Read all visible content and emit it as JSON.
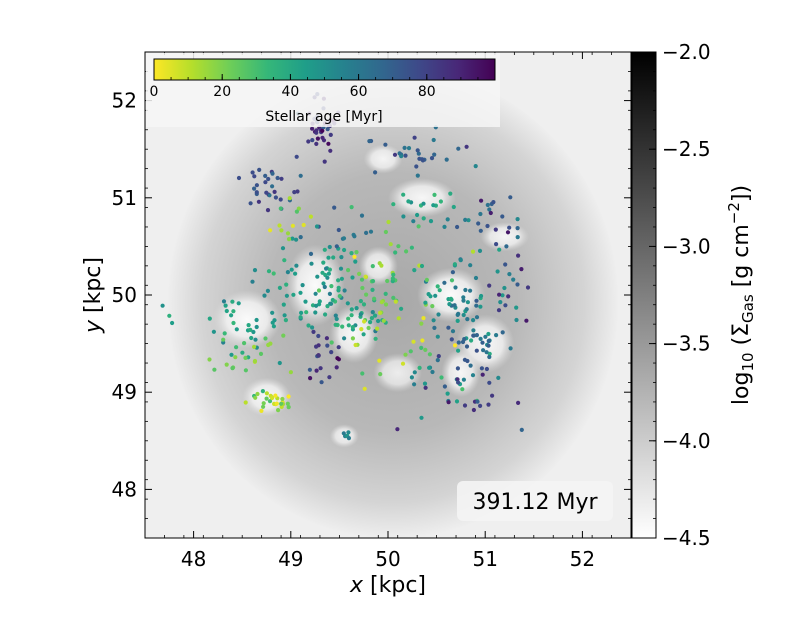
{
  "chart_data": {
    "type": "scatter",
    "title": "",
    "time_label": "391.12 Myr",
    "x_axis": {
      "label_var": "x",
      "label_unit": " [kpc]",
      "lim": [
        47.5,
        52.5
      ],
      "ticks": [
        48,
        49,
        50,
        51,
        52
      ],
      "tick_labels": [
        "48",
        "49",
        "50",
        "51",
        "52"
      ]
    },
    "y_axis": {
      "label_var": "y",
      "label_unit": " [kpc]",
      "lim": [
        47.5,
        52.5
      ],
      "ticks": [
        48,
        49,
        50,
        51,
        52
      ],
      "tick_labels": [
        "48",
        "49",
        "50",
        "51",
        "52"
      ]
    },
    "gas_colorbar": {
      "label_prefix": "log",
      "label_sub": "10",
      "label_mid": " (Σ",
      "label_sub2": "Gas",
      "label_unit": " [g cm",
      "label_exp": "−2",
      "label_end": "])",
      "lim": [
        -4.5,
        -2.0
      ],
      "ticks": [
        -4.5,
        -4.0,
        -3.5,
        -3.0,
        -2.5,
        -2.0
      ],
      "tick_labels": [
        "−4.5",
        "−4.0",
        "−3.5",
        "−3.0",
        "−2.5",
        "−2.0"
      ],
      "colormap": "gray_r"
    },
    "age_colorbar": {
      "label": "Stellar age [Myr]",
      "lim": [
        0,
        100
      ],
      "ticks": [
        0,
        20,
        40,
        60,
        80
      ],
      "tick_labels": [
        "0",
        "20",
        "40",
        "60",
        "80"
      ],
      "colormap": "viridis_r"
    },
    "gas_clumps": [
      {
        "x": 49.25,
        "y": 50.1,
        "rx": 0.3,
        "ry": 0.42,
        "v": -2.15
      },
      {
        "x": 49.65,
        "y": 49.6,
        "rx": 0.25,
        "ry": 0.3,
        "v": -2.2
      },
      {
        "x": 48.55,
        "y": 49.75,
        "rx": 0.35,
        "ry": 0.3,
        "v": -2.2
      },
      {
        "x": 48.75,
        "y": 48.95,
        "rx": 0.25,
        "ry": 0.2,
        "v": -2.3
      },
      {
        "x": 50.65,
        "y": 50.0,
        "rx": 0.35,
        "ry": 0.28,
        "v": -2.15
      },
      {
        "x": 51.0,
        "y": 49.5,
        "rx": 0.3,
        "ry": 0.3,
        "v": -2.25
      },
      {
        "x": 50.75,
        "y": 49.2,
        "rx": 0.2,
        "ry": 0.25,
        "v": -2.3
      },
      {
        "x": 51.2,
        "y": 50.6,
        "rx": 0.25,
        "ry": 0.15,
        "v": -2.35
      },
      {
        "x": 50.35,
        "y": 51.0,
        "rx": 0.35,
        "ry": 0.2,
        "v": -2.3
      },
      {
        "x": 49.95,
        "y": 51.4,
        "rx": 0.2,
        "ry": 0.15,
        "v": -2.4
      },
      {
        "x": 49.9,
        "y": 50.3,
        "rx": 0.2,
        "ry": 0.2,
        "v": -2.4
      },
      {
        "x": 49.55,
        "y": 48.55,
        "rx": 0.15,
        "ry": 0.12,
        "v": -2.5
      },
      {
        "x": 50.1,
        "y": 49.2,
        "rx": 0.25,
        "ry": 0.2,
        "v": -2.6
      }
    ],
    "star_groups": [
      {
        "name": "",
        "cx": 49.3,
        "cy": 51.75,
        "sx": 0.12,
        "sy": 0.15,
        "n": 40,
        "age": 85
      },
      {
        "name": "",
        "cx": 48.8,
        "cy": 51.15,
        "sx": 0.12,
        "sy": 0.15,
        "n": 30,
        "age": 75
      },
      {
        "name": "",
        "cx": 50.35,
        "cy": 51.45,
        "sx": 0.25,
        "sy": 0.1,
        "n": 28,
        "age": 70
      },
      {
        "name": "",
        "cx": 50.4,
        "cy": 50.9,
        "sx": 0.25,
        "sy": 0.1,
        "n": 20,
        "age": 40
      },
      {
        "name": "",
        "cx": 51.0,
        "cy": 50.75,
        "sx": 0.25,
        "sy": 0.15,
        "n": 20,
        "age": 65
      },
      {
        "name": "",
        "cx": 49.25,
        "cy": 50.15,
        "sx": 0.2,
        "sy": 0.2,
        "n": 55,
        "age": 45
      },
      {
        "name": "",
        "cx": 49.6,
        "cy": 49.8,
        "sx": 0.25,
        "sy": 0.15,
        "n": 50,
        "age": 40
      },
      {
        "name": "",
        "cx": 49.9,
        "cy": 50.25,
        "sx": 0.2,
        "sy": 0.2,
        "n": 30,
        "age": 20
      },
      {
        "name": "",
        "cx": 48.55,
        "cy": 49.75,
        "sx": 0.25,
        "sy": 0.2,
        "n": 40,
        "age": 45
      },
      {
        "name": "",
        "cx": 48.5,
        "cy": 49.4,
        "sx": 0.2,
        "sy": 0.12,
        "n": 20,
        "age": 20
      },
      {
        "name": "",
        "cx": 48.8,
        "cy": 48.9,
        "sx": 0.12,
        "sy": 0.06,
        "n": 28,
        "age": 15
      },
      {
        "name": "",
        "cx": 49.35,
        "cy": 49.4,
        "sx": 0.12,
        "sy": 0.12,
        "n": 20,
        "age": 85
      },
      {
        "name": "",
        "cx": 50.8,
        "cy": 49.9,
        "sx": 0.25,
        "sy": 0.25,
        "n": 55,
        "age": 55
      },
      {
        "name": "",
        "cx": 50.9,
        "cy": 49.5,
        "sx": 0.2,
        "sy": 0.15,
        "n": 30,
        "age": 65
      },
      {
        "name": "",
        "cx": 50.55,
        "cy": 49.15,
        "sx": 0.25,
        "sy": 0.2,
        "n": 25,
        "age": 45
      },
      {
        "name": "",
        "cx": 51.2,
        "cy": 50.25,
        "sx": 0.2,
        "sy": 0.3,
        "n": 15,
        "age": 88
      },
      {
        "name": "",
        "cx": 50.0,
        "cy": 49.6,
        "sx": 0.3,
        "sy": 0.3,
        "n": 25,
        "age": 10
      },
      {
        "name": "",
        "cx": 50.9,
        "cy": 48.9,
        "sx": 0.3,
        "sy": 0.25,
        "n": 18,
        "age": 80
      },
      {
        "name": "",
        "cx": 49.6,
        "cy": 50.65,
        "sx": 0.3,
        "sy": 0.15,
        "n": 15,
        "age": 60
      },
      {
        "name": "",
        "cx": 50.5,
        "cy": 50.25,
        "sx": 0.25,
        "sy": 0.2,
        "n": 15,
        "age": 30
      },
      {
        "name": "",
        "cx": 49.0,
        "cy": 50.8,
        "sx": 0.15,
        "sy": 0.15,
        "n": 12,
        "age": 15
      },
      {
        "name": "",
        "cx": 49.55,
        "cy": 48.55,
        "sx": 0.05,
        "sy": 0.03,
        "n": 5,
        "age": 50
      }
    ]
  }
}
